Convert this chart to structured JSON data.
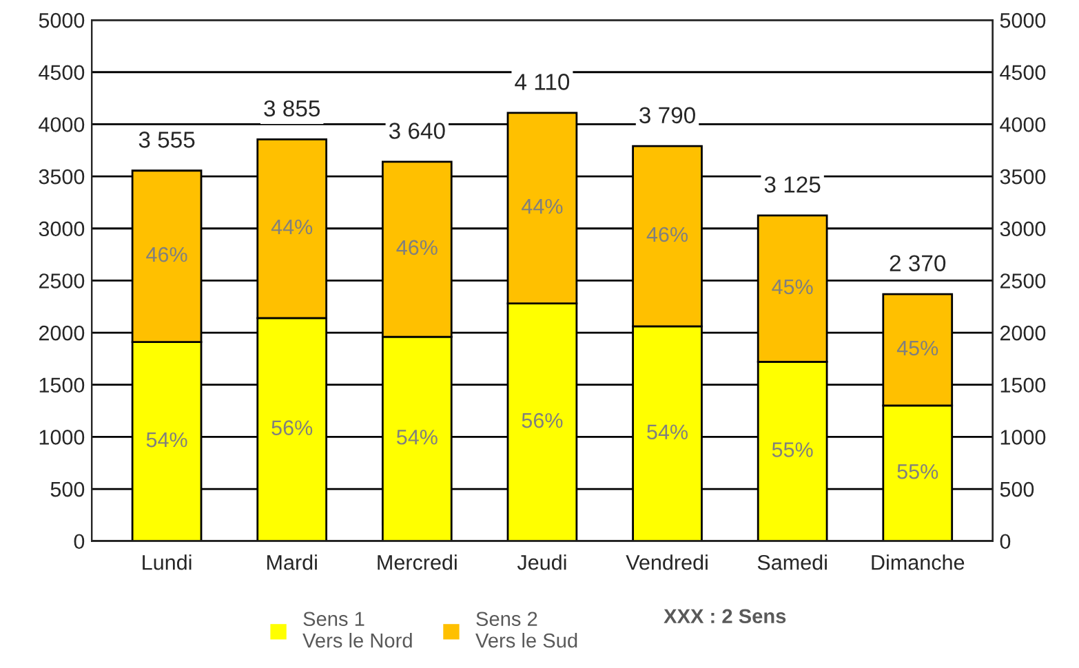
{
  "chart_data": {
    "type": "bar",
    "stacked": true,
    "categories": [
      "Lundi",
      "Mardi",
      "Mercredi",
      "Jeudi",
      "Vendredi",
      "Samedi",
      "Dimanche"
    ],
    "series": [
      {
        "name": "Sens 1\nVers le Nord",
        "color": "#ffff00",
        "values": [
          1910,
          2140,
          1960,
          2280,
          2060,
          1720,
          1300
        ]
      },
      {
        "name": "Sens 2\nVers le Sud",
        "color": "#ffc000",
        "values": [
          1645,
          1715,
          1680,
          1830,
          1730,
          1405,
          1070
        ]
      }
    ],
    "totals": [
      "3 555",
      "3 855",
      "3 640",
      "4 110",
      "3 790",
      "3 125",
      "2 370"
    ],
    "ylim": [
      0,
      5000
    ],
    "yticks": [
      0,
      500,
      1000,
      1500,
      2000,
      2500,
      3000,
      3500,
      4000,
      4500,
      5000
    ],
    "y2lim": [
      0,
      5000
    ],
    "y2ticks": [
      0,
      500,
      1000,
      1500,
      2000,
      2500,
      3000,
      3500,
      4000,
      4500,
      5000
    ],
    "grid": "y",
    "legend": "bottom",
    "annotations": [
      "XXX : 2 Sens",
      "54%",
      "56%",
      "54%",
      "56%",
      "54%",
      "55%",
      "55%",
      "46%",
      "44%",
      "46%",
      "44%",
      "46%",
      "45%",
      "45%"
    ]
  }
}
